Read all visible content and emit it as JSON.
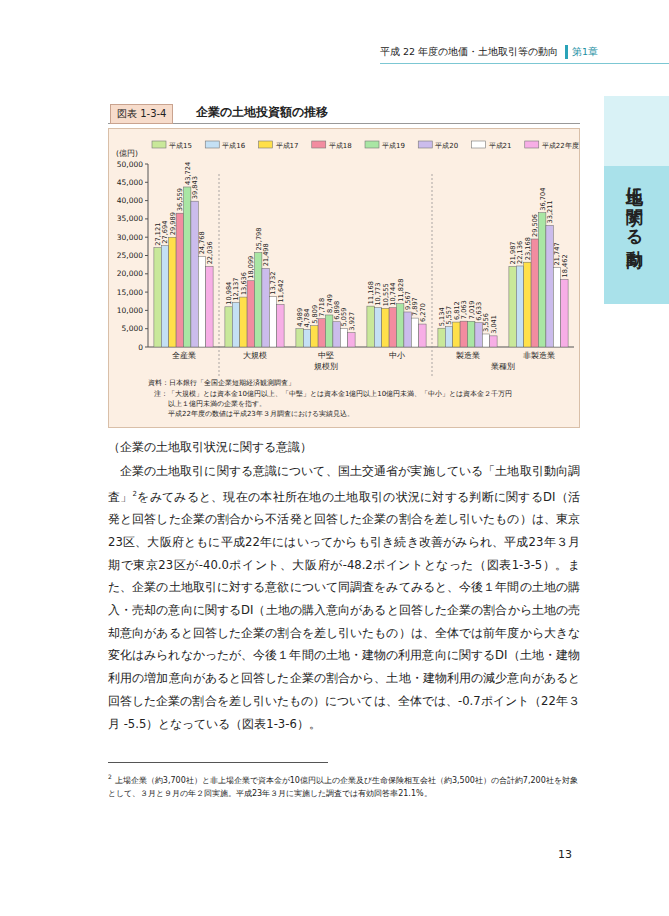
{
  "page": {
    "header": {
      "title": "平成 22 年度の地価・土地取引等の動向",
      "chapter": "第1章"
    },
    "side_tab": "土地に関する動向",
    "figure": {
      "number": "図表 1-3-4",
      "source": "資料：日本銀行「全国企業短期経済観測調査」",
      "notes": [
        "注：「大規模」とは資本金10億円以上、「中堅」とは資本金1億円以上10億円未満、「中小」とは資本金２千万円",
        "以上１億円未満の企業を指す。",
        "平成22年度の数値は平成23年３月調査における実績見込。"
      ]
    },
    "section": {
      "heading": "（企業の土地取引状況に関する意識）",
      "paragraph_before": "企業の土地取引に関する意識について、国土交通省が実施している「土地取引動向調査」",
      "footnote_ref": "2",
      "paragraph_after": "をみてみると、現在の本社所在地の土地取引の状況に対する判断に関するDI（活発と回答した企業の割合から不活発と回答した企業の割合を差し引いたもの）は、東京23区、大阪府ともに平成22年にはいってからも引き続き改善がみられ、平成23年３月期で東京23区が-40.0ポイント、大阪府が-48.2ポイントとなった（図表1-3-5）。また、企業の土地取引に対する意欲について同調査をみてみると、今後１年間の土地の購入・売却の意向に関するDI（土地の購入意向があると回答した企業の割合から土地の売却意向があると回答した企業の割合を差し引いたもの）は、全体では前年度から大きな変化はみられなかったが、今後１年間の土地・建物の利用意向に関するDI（土地・建物利用の増加意向があると回答した企業の割合から、土地・建物利用の減少意向があると回答した企業の割合を差し引いたもの）については、全体では、-0.7ポイント（22年３月 -5.5）となっている（図表1-3-6）。"
    },
    "footnote": {
      "mark": "2",
      "text": "上場企業（約3,700社）と非上場企業で資本金が10億円以上の企業及び生命保険相互会社（約3,500社）の合計約7,200社を対象として、３月と９月の年２回実施。平成23年３月に実施した調査では有効回答率21.1%。"
    },
    "page_number": "13"
  },
  "chart_data": {
    "type": "bar",
    "title": "企業の土地投資額の推移",
    "y_label": "(億円)",
    "categories": [
      "全産業",
      "大規模",
      "中堅",
      "中小",
      "製造業",
      "非製造業"
    ],
    "annotations": [
      "規模別",
      "業種別"
    ],
    "ylim": [
      0,
      50000
    ],
    "yticks": [
      0,
      {
        "value": 5000,
        "label": "5,000"
      },
      {
        "value": 10000,
        "label": "10,000"
      },
      {
        "value": 15000,
        "label": "15,000"
      },
      {
        "value": 20000,
        "label": "20,000"
      },
      {
        "value": 25000,
        "label": "25,000"
      },
      {
        "value": 30000,
        "label": "30,000"
      },
      {
        "value": 35000,
        "label": "35,000"
      },
      {
        "value": 40000,
        "label": "40,000"
      },
      {
        "value": 45000,
        "label": "45,000"
      },
      {
        "value": 50000,
        "label": "50,000"
      }
    ],
    "grid": false,
    "legend": "top",
    "data_labels": true,
    "series": [
      {
        "name": "平成15",
        "color": "#c9e89a",
        "values": [
          27121,
          10984,
          4989,
          11168,
          5134,
          21987
        ],
        "value_labels": [
          "27,121",
          "10,984",
          "4,989",
          "11,168",
          "5,134",
          "21,987"
        ]
      },
      {
        "name": "平成16",
        "color": "#c4e0f4",
        "values": [
          27694,
          12137,
          4784,
          10773,
          5557,
          22136
        ],
        "value_labels": [
          "27,694",
          "12,137",
          "4,784",
          "10,773",
          "5,557",
          "22,136"
        ]
      },
      {
        "name": "平成17",
        "color": "#ffe04a",
        "values": [
          29989,
          13636,
          5809,
          10555,
          6812,
          23168
        ],
        "value_labels": [
          "29,989",
          "13,636",
          "5,809",
          "10,555",
          "6,812",
          "23,168"
        ]
      },
      {
        "name": "平成18",
        "color": "#f28ca0",
        "values": [
          36559,
          18099,
          7718,
          10744,
          7063,
          29506
        ],
        "value_labels": [
          "36,559",
          "18,099",
          "7,718",
          "10,744",
          "7,063",
          "29,506"
        ]
      },
      {
        "name": "平成19",
        "color": "#a9e6a4",
        "values": [
          43724,
          25798,
          8749,
          11828,
          7019,
          36704
        ],
        "value_labels": [
          "43,724",
          "25,798",
          "8,749",
          "11,828",
          "7,019",
          "36,704"
        ]
      },
      {
        "name": "平成20",
        "color": "#cbbcec",
        "values": [
          39843,
          21498,
          6898,
          9567,
          6633,
          33211
        ],
        "value_labels": [
          "39,843",
          "21,498",
          "6,898",
          "9,567",
          "6,633",
          "33,211"
        ]
      },
      {
        "name": "平成21",
        "color": "#ffffff",
        "values": [
          24768,
          13732,
          5059,
          7897,
          3556,
          21747
        ],
        "value_labels": [
          "24,768",
          "13,732",
          "5,059",
          "7,897",
          "3,556",
          "21,747"
        ]
      },
      {
        "name": "平成22年度",
        "color": "#f7aee6",
        "values": [
          22036,
          11642,
          3927,
          6270,
          3041,
          18462
        ],
        "value_labels": [
          "22,036",
          "11,642",
          "3,927",
          "6,270",
          "3,041",
          "18,462"
        ]
      }
    ]
  }
}
